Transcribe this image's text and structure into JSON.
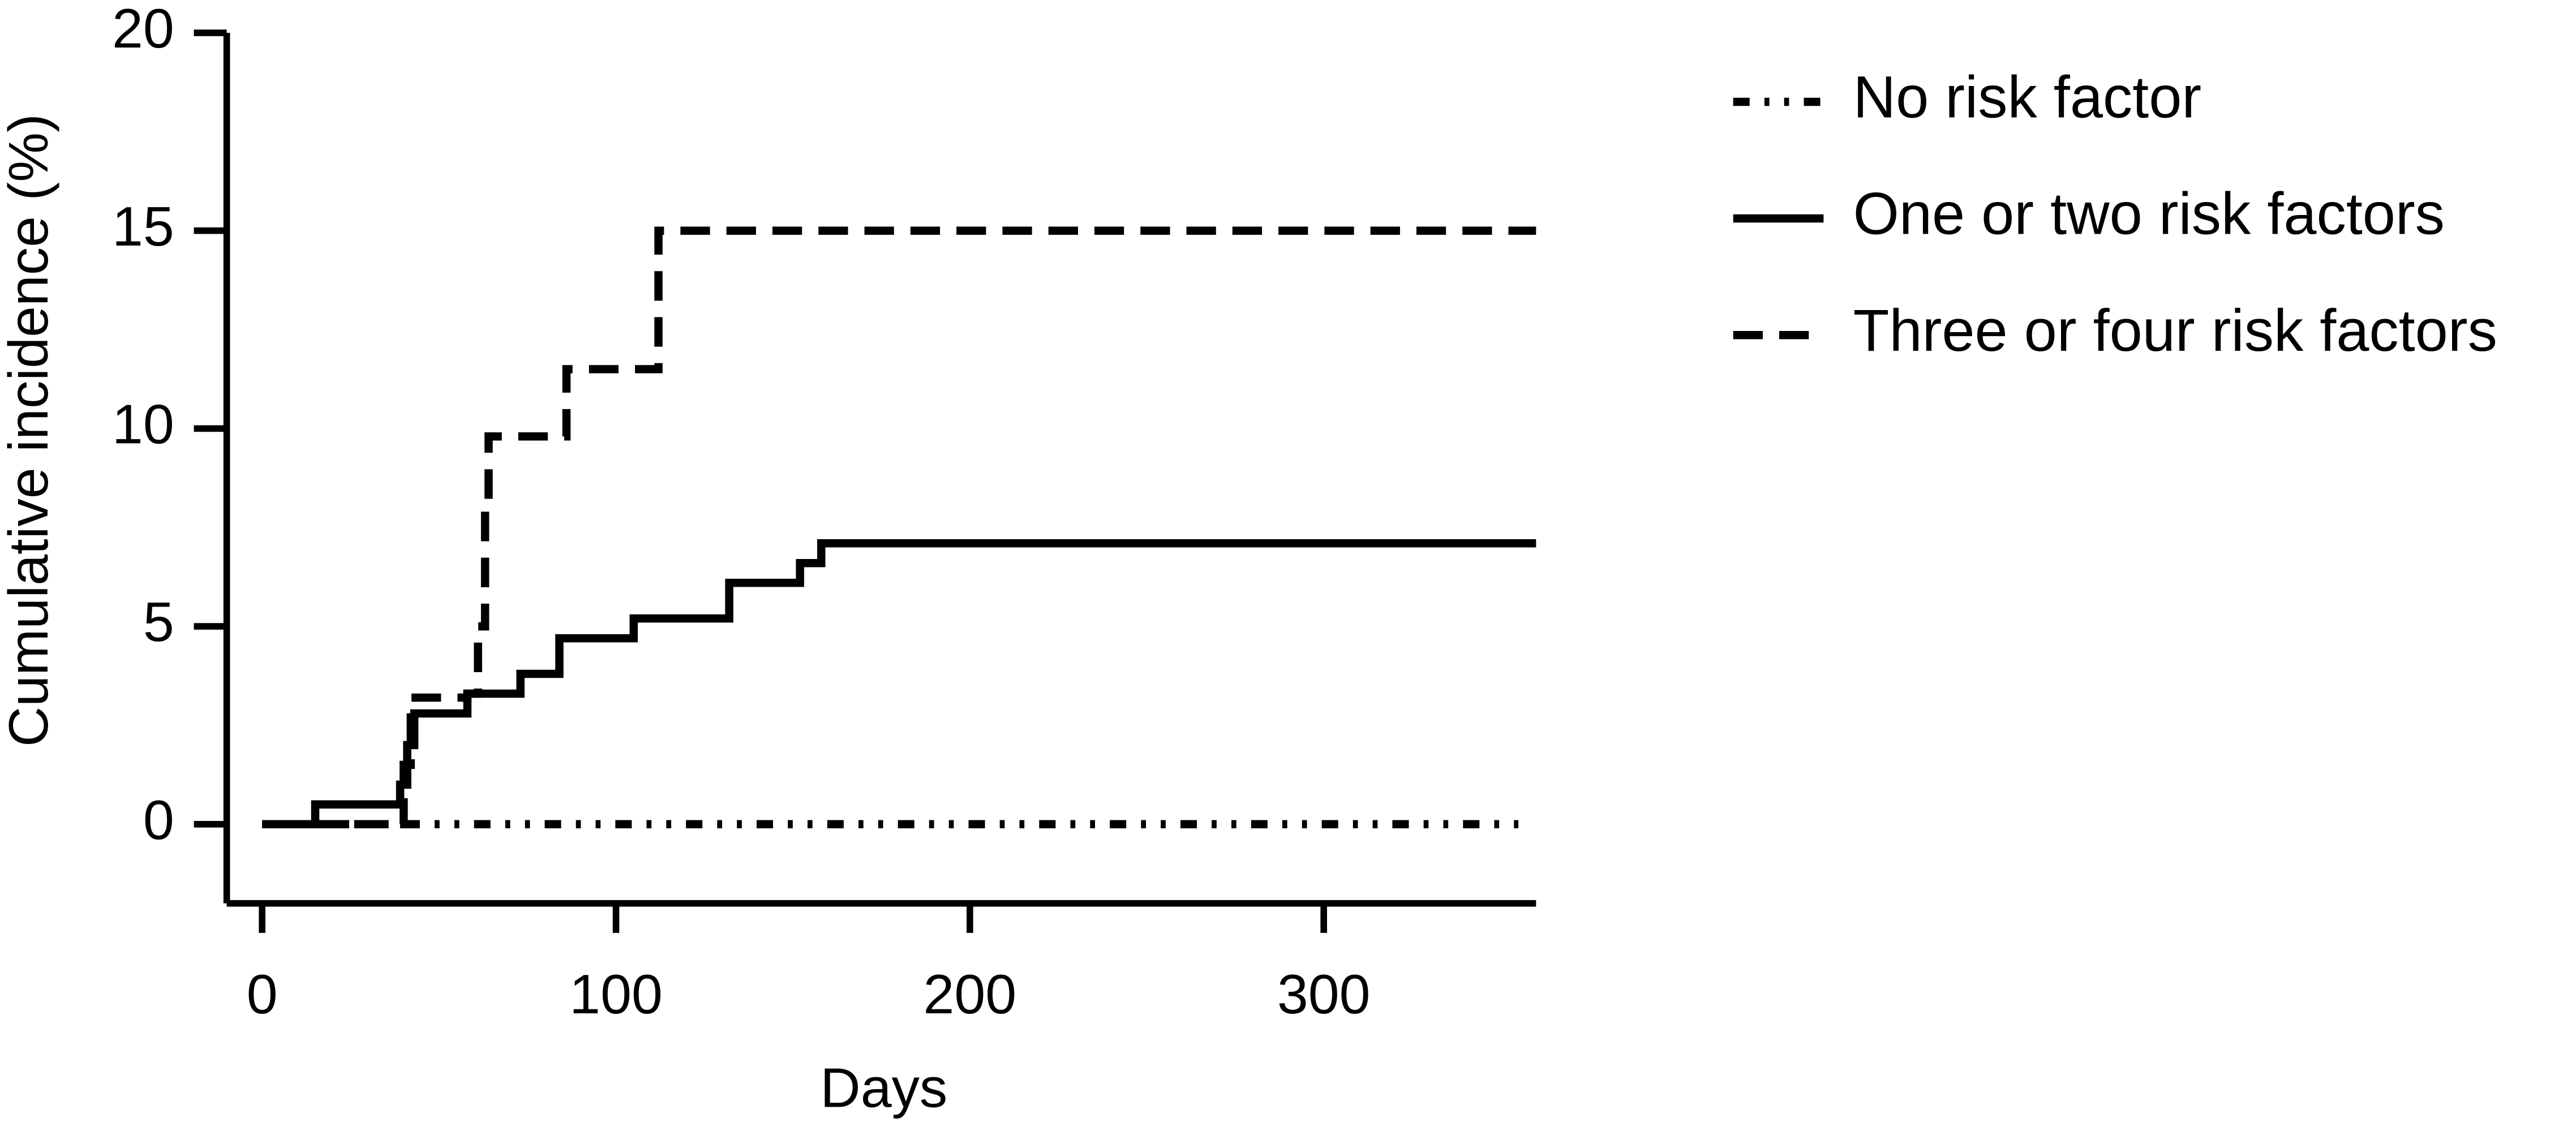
{
  "chart_data": {
    "type": "line",
    "step": true,
    "xlabel": "Days",
    "ylabel": "Cumulative incidence (%)",
    "xlim": [
      -10,
      360
    ],
    "xticks": [
      0,
      100,
      200,
      300
    ],
    "ylim": [
      -2,
      20
    ],
    "yticks": [
      0,
      5,
      10,
      15,
      20
    ],
    "series": [
      {
        "name": "No risk factor",
        "color": "#000000",
        "dash": "dashdot",
        "x": [
          0,
          355
        ],
        "values": [
          0,
          0
        ]
      },
      {
        "name": "One or two risk factors",
        "color": "#000000",
        "dash": "solid",
        "x": [
          0,
          15,
          39,
          41,
          43,
          58,
          73,
          84,
          105,
          132,
          152,
          158,
          360
        ],
        "values": [
          0,
          0.5,
          1,
          2,
          2.8,
          3.3,
          3.8,
          4.7,
          5.2,
          6.1,
          6.6,
          7.1,
          7.1
        ]
      },
      {
        "name": "Three or four risk factors",
        "color": "#000000",
        "dash": "dashed",
        "x": [
          0,
          40,
          42,
          58,
          61,
          63,
          64,
          86,
          112,
          360
        ],
        "values": [
          0,
          1.5,
          3.2,
          3.3,
          5,
          8,
          9.8,
          11.5,
          15,
          15
        ]
      }
    ]
  }
}
